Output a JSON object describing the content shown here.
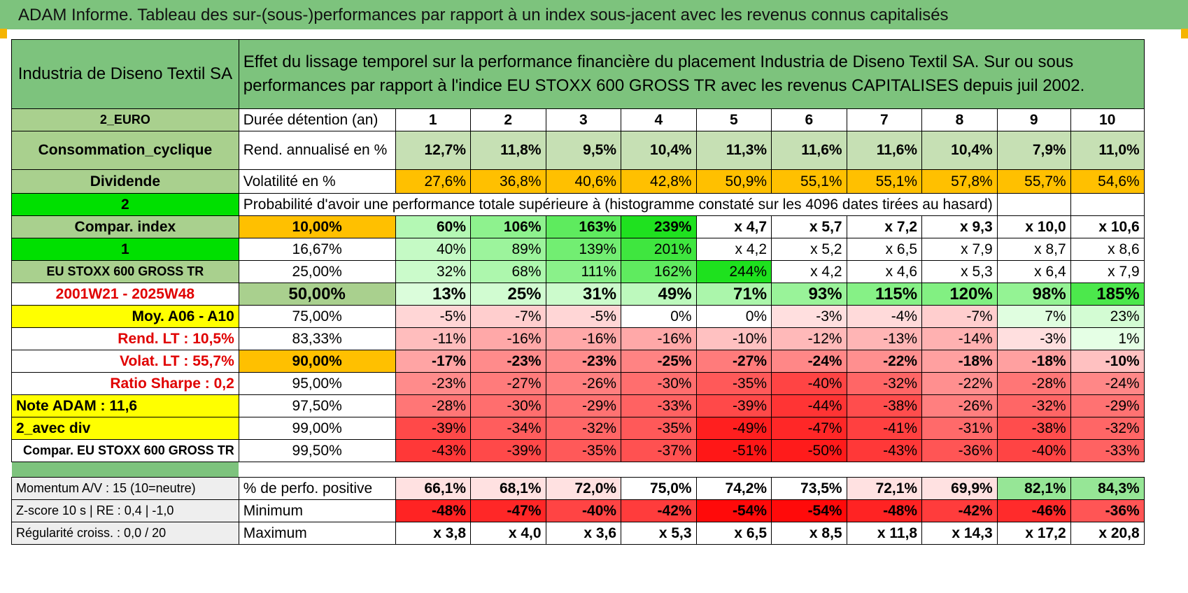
{
  "title": "ADAM Informe. Tableau des sur-(sous-)performances par rapport à un index sous-jacent avec les revenus connus capitalisés",
  "company": "Industria de Diseno Textil SA",
  "description": "Effet du lissage temporel sur la performance financière du placement Industria de Diseno Textil SA. Sur ou sous performances par rapport à l'indice EU STOXX 600 GROSS TR avec les revenus CAPITALISES depuis juil 2002.",
  "left": {
    "currency": "2_EURO",
    "sector": "Consommation_cyclique",
    "dividend": "Dividende",
    "two": "2",
    "compar_index": "Compar. index",
    "one": "1",
    "index_name": "EU STOXX 600 GROSS TR",
    "period": "2001W21 - 2025W48",
    "moy": "Moy. A06 - A10",
    "rend_lt": "Rend. LT :    10,5%",
    "volat_lt": "Volat. LT :    55,7%",
    "sharpe": "Ratio Sharpe :     0,2",
    "note": "Note ADAM : 11,6",
    "avec_div": "2_avec div",
    "compar": "Compar. EU STOXX 600 GROSS TR"
  },
  "header": {
    "duration_label": "Durée détention (an)",
    "years": [
      "1",
      "2",
      "3",
      "4",
      "5",
      "6",
      "7",
      "8",
      "9",
      "10"
    ],
    "rend_label": "Rend. annualisé en %",
    "rend": [
      "12,7%",
      "11,8%",
      "9,5%",
      "10,4%",
      "11,3%",
      "11,6%",
      "11,6%",
      "10,4%",
      "7,9%",
      "11,0%"
    ],
    "vol_label": "Volatilité en %",
    "vol": [
      "27,6%",
      "36,8%",
      "40,6%",
      "42,8%",
      "50,9%",
      "55,1%",
      "55,1%",
      "57,8%",
      "55,7%",
      "54,6%"
    ],
    "prob_label": "Probabilité d'avoir une performance totale supérieure à (histogramme constaté sur les 4096 dates tirées au hasard)"
  },
  "prob_rows": [
    {
      "p": "10,00%",
      "v": [
        "60%",
        "106%",
        "163%",
        "239%",
        "x 4,7",
        "x 5,7",
        "x 7,2",
        "x 9,3",
        "x 10,0",
        "x 10,6"
      ]
    },
    {
      "p": "16,67%",
      "v": [
        "40%",
        "89%",
        "139%",
        "201%",
        "x 4,2",
        "x 5,2",
        "x 6,5",
        "x 7,9",
        "x 8,7",
        "x 8,6"
      ]
    },
    {
      "p": "25,00%",
      "v": [
        "32%",
        "68%",
        "111%",
        "162%",
        "244%",
        "x 4,2",
        "x 4,6",
        "x 5,3",
        "x 6,4",
        "x 7,9"
      ]
    },
    {
      "p": "50,00%",
      "v": [
        "13%",
        "25%",
        "31%",
        "49%",
        "71%",
        "93%",
        "115%",
        "120%",
        "98%",
        "185%"
      ]
    },
    {
      "p": "75,00%",
      "v": [
        "-5%",
        "-7%",
        "-5%",
        "0%",
        "0%",
        "-3%",
        "-4%",
        "-7%",
        "7%",
        "23%"
      ]
    },
    {
      "p": "83,33%",
      "v": [
        "-11%",
        "-16%",
        "-16%",
        "-16%",
        "-10%",
        "-12%",
        "-13%",
        "-14%",
        "-3%",
        "1%"
      ]
    },
    {
      "p": "90,00%",
      "v": [
        "-17%",
        "-23%",
        "-23%",
        "-25%",
        "-27%",
        "-24%",
        "-22%",
        "-18%",
        "-18%",
        "-10%"
      ]
    },
    {
      "p": "95,00%",
      "v": [
        "-23%",
        "-27%",
        "-26%",
        "-30%",
        "-35%",
        "-40%",
        "-32%",
        "-22%",
        "-28%",
        "-24%"
      ]
    },
    {
      "p": "97,50%",
      "v": [
        "-28%",
        "-30%",
        "-29%",
        "-33%",
        "-39%",
        "-44%",
        "-38%",
        "-26%",
        "-32%",
        "-29%"
      ]
    },
    {
      "p": "99,00%",
      "v": [
        "-39%",
        "-34%",
        "-32%",
        "-35%",
        "-49%",
        "-47%",
        "-41%",
        "-31%",
        "-38%",
        "-32%"
      ]
    },
    {
      "p": "99,50%",
      "v": [
        "-43%",
        "-39%",
        "-35%",
        "-37%",
        "-51%",
        "-50%",
        "-43%",
        "-36%",
        "-40%",
        "-33%"
      ]
    }
  ],
  "footer": {
    "momentum": "Momentum A/V : 15 (10=neutre)",
    "zscore": "Z-score 10 s | RE : 0,4 | -1,0",
    "regularite": "Régularité croiss. : 0,0 / 20",
    "pos_label": "% de perfo. positive",
    "pos": [
      "66,1%",
      "68,1%",
      "72,0%",
      "75,0%",
      "74,2%",
      "73,5%",
      "72,1%",
      "69,9%",
      "82,1%",
      "84,3%"
    ],
    "min_label": "Minimum",
    "min": [
      "-48%",
      "-47%",
      "-40%",
      "-42%",
      "-54%",
      "-54%",
      "-48%",
      "-42%",
      "-46%",
      "-36%"
    ],
    "max_label": "Maximum",
    "max": [
      "x 3,8",
      "x 4,0",
      "x 3,6",
      "x 5,3",
      "x 6,5",
      "x 8,5",
      "x 11,8",
      "x 14,3",
      "x 17,2",
      "x 20,8"
    ]
  },
  "colors": {
    "header_green": "#7dc37d",
    "vol_orange": "#ffc000",
    "yellow": "#ffff00",
    "bright_green": "#00e000"
  }
}
